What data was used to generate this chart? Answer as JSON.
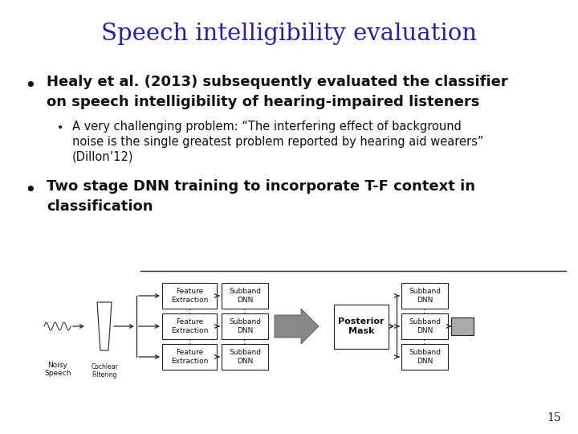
{
  "title": "Speech intelligibility evaluation",
  "title_color": "#2222aa",
  "title_fontsize": 20,
  "bg_color": "#ffffff",
  "bullet1_line1": "Healy et al. (2013) subsequently evaluated the classifier",
  "bullet1_line2": "on speech intelligibility of hearing-impaired listeners",
  "bullet1_sub_line1": "A very challenging problem: “The interfering effect of background",
  "bullet1_sub_line2": "noise is the single greatest problem reported by hearing aid wearers”",
  "bullet1_sub_line3": "(Dillon’12)",
  "bullet2_line1": "Two stage DNN training to incorporate T-F context in",
  "bullet2_line2": "classification",
  "page_num": "15",
  "text_color": "#111111",
  "diagram_line_color": "#222222",
  "box_color": "#ffffff",
  "gray_color": "#888888"
}
